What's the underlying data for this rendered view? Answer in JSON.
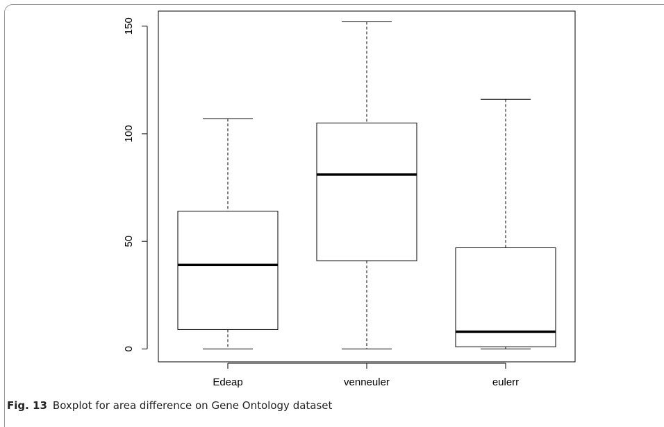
{
  "figure": {
    "label": "Fig. 13",
    "caption": "Boxplot for area difference on Gene Ontology dataset"
  },
  "chart_data": {
    "type": "boxplot",
    "title": "",
    "xlabel": "",
    "ylabel": "",
    "ylim": [
      -6,
      157
    ],
    "yticks": [
      0,
      50,
      100,
      150
    ],
    "grid": false,
    "categories": [
      "Edeap",
      "venneuler",
      "eulerr"
    ],
    "boxes": [
      {
        "category": "Edeap",
        "min": 0,
        "q1": 9,
        "median": 39,
        "q3": 64,
        "max": 107
      },
      {
        "category": "venneuler",
        "min": 0,
        "q1": 41,
        "median": 81,
        "q3": 105,
        "max": 152
      },
      {
        "category": "eulerr",
        "min": 0,
        "q1": 1,
        "median": 8,
        "q3": 47,
        "max": 116
      }
    ]
  },
  "colors": {
    "box_fill": "#ffffff",
    "stroke": "#000000",
    "frame": "#9a9a9a"
  }
}
